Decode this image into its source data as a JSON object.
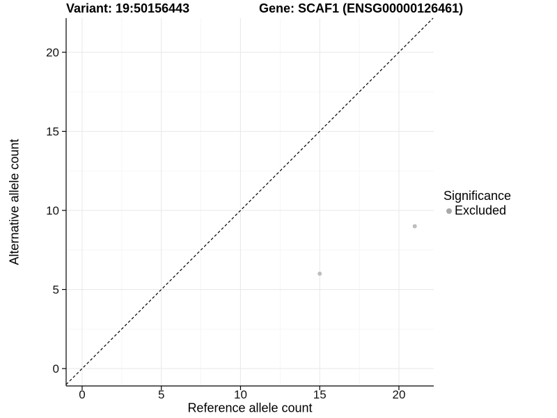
{
  "chart_data": {
    "type": "scatter",
    "title_left": "Variant: 19:50156443",
    "title_right": "Gene: SCAF1 (ENSG00000126461)",
    "xlabel": "Reference allele count",
    "ylabel": "Alternative allele count",
    "xlim": [
      -1.01,
      22.2
    ],
    "ylim": [
      -1.1,
      22.16
    ],
    "xticks": [
      0,
      5,
      10,
      15,
      20
    ],
    "yticks": [
      0,
      5,
      10,
      15,
      20
    ],
    "xticks_minor": [
      2.5,
      7.5,
      12.5,
      17.5
    ],
    "yticks_minor": [
      2.5,
      7.5,
      12.5,
      17.5
    ],
    "grid": "major and minor gridlines, light gray on white panel",
    "legend_position": "right",
    "reference_line": {
      "kind": "abline",
      "slope": 1,
      "intercept": 0,
      "style": "dashed",
      "color": "#000000"
    },
    "series": [
      {
        "name": "Excluded",
        "color": "#bdbdbd",
        "marker": "circle",
        "marker_radius_px": 3,
        "points": [
          [
            15,
            6
          ],
          [
            21,
            9
          ]
        ]
      }
    ],
    "legend": {
      "title": "Significance",
      "items": [
        {
          "label": "Excluded",
          "color": "#a9a9a9"
        }
      ]
    },
    "colors": {
      "grid_major": "#e9e9e9",
      "grid_minor": "#f5f5f5",
      "axis": "#000000"
    }
  }
}
